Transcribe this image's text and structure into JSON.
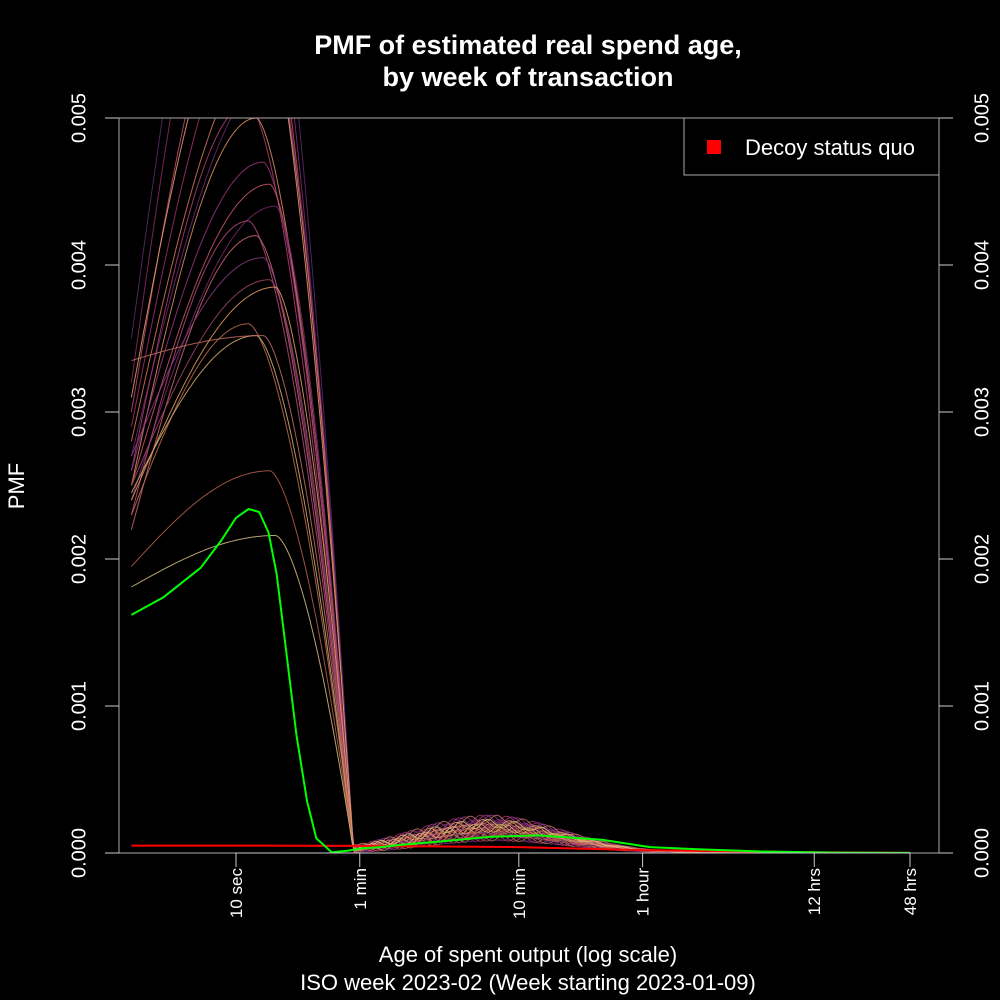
{
  "chart_data": {
    "type": "line",
    "title_line1": "PMF of estimated real spend age,",
    "title_line2": "by week of transaction",
    "xlabel": "Age of spent output (log scale)",
    "subtitle": "ISO week 2023-02 (Week starting 2023-01-09)",
    "ylabel": "PMF",
    "x_scale": "log",
    "x_unit": "seconds",
    "ylim": [
      0,
      0.005
    ],
    "y_ticks": [
      {
        "value": 0,
        "label": "0.000"
      },
      {
        "value": 0.001,
        "label": "0.001"
      },
      {
        "value": 0.002,
        "label": "0.002"
      },
      {
        "value": 0.003,
        "label": "0.003"
      },
      {
        "value": 0.004,
        "label": "0.004"
      },
      {
        "value": 0.005,
        "label": "0.005"
      }
    ],
    "x_ticks": [
      {
        "seconds": 10,
        "label": "10 sec"
      },
      {
        "seconds": 60,
        "label": "1 min"
      },
      {
        "seconds": 600,
        "label": "10 min"
      },
      {
        "seconds": 3600,
        "label": "1 hour"
      },
      {
        "seconds": 43200,
        "label": "12 hrs"
      },
      {
        "seconds": 172800,
        "label": "48 hrs"
      }
    ],
    "legend": {
      "position": "top-right",
      "entries": [
        {
          "label": "Decoy status quo",
          "color": "#ff0000"
        }
      ]
    },
    "highlight_color": "#00ff00",
    "decoy_color": "#ff0000",
    "highlight_series": {
      "x": [
        2.2,
        3.5,
        6,
        8,
        10,
        12,
        14,
        16,
        18,
        20,
        24,
        28,
        32,
        40,
        50,
        60,
        80,
        120,
        200,
        400,
        800,
        2000,
        4000,
        8000,
        20000,
        60000,
        172800
      ],
      "y": [
        0.00162,
        0.00174,
        0.00194,
        0.00212,
        0.00228,
        0.00234,
        0.00232,
        0.00218,
        0.0019,
        0.0015,
        0.0008,
        0.00035,
        0.0001,
        4e-06,
        1.5e-05,
        3e-05,
        4e-05,
        6e-05,
        8e-05,
        0.00011,
        0.00012,
        9e-05,
        4e-05,
        2.5e-05,
        1e-05,
        3e-06,
        1e-06
      ]
    },
    "decoy_series": {
      "x": [
        2.2,
        10,
        60,
        600,
        3600,
        43200,
        172800
      ],
      "y": [
        5e-05,
        5e-05,
        4.8e-05,
        4e-05,
        2e-05,
        5e-06,
        1e-06
      ]
    },
    "background_series": [
      {
        "color": "#8b2a6b",
        "peak": 0.0068,
        "start": 0.0032
      },
      {
        "color": "#c0506a",
        "peak": 0.0062,
        "start": 0.003
      },
      {
        "color": "#a0306a",
        "peak": 0.0058,
        "start": 0.0029
      },
      {
        "color": "#d87a55",
        "peak": 0.0055,
        "start": 0.0028
      },
      {
        "color": "#6a2a70",
        "peak": 0.0053,
        "start": 0.0027
      },
      {
        "color": "#b04070",
        "peak": 0.0051,
        "start": 0.0026
      },
      {
        "color": "#e09060",
        "peak": 0.005,
        "start": 0.0025
      },
      {
        "color": "#9a3580",
        "peak": 0.0047,
        "start": 0.0026
      },
      {
        "color": "#c85a6a",
        "peak": 0.00455,
        "start": 0.0025
      },
      {
        "color": "#7a2a6a",
        "peak": 0.0044,
        "start": 0.0024
      },
      {
        "color": "#b84a78",
        "peak": 0.0043,
        "start": 0.0023
      },
      {
        "color": "#d06a70",
        "peak": 0.0042,
        "start": 0.0022
      },
      {
        "color": "#8a3a82",
        "peak": 0.00405,
        "start": 0.0027
      },
      {
        "color": "#a24468",
        "peak": 0.0039,
        "start": 0.0025
      },
      {
        "color": "#e8a060",
        "peak": 0.00385,
        "start": 0.0024
      },
      {
        "color": "#c07050",
        "peak": 0.0036,
        "start": 0.0023
      },
      {
        "color": "#d8b070",
        "peak": 0.00352,
        "start": 0.00245
      },
      {
        "color": "#c87060",
        "peak": 0.00352,
        "start": 0.00335
      },
      {
        "color": "#b86050",
        "peak": 0.0026,
        "start": 0.00195
      },
      {
        "color": "#d8c080",
        "peak": 0.00216,
        "start": 0.00181
      },
      {
        "color": "#5a2a70",
        "peak": 0.0072,
        "start": 0.0035
      },
      {
        "color": "#f0a070",
        "peak": 0.006,
        "start": 0.0031
      }
    ]
  }
}
